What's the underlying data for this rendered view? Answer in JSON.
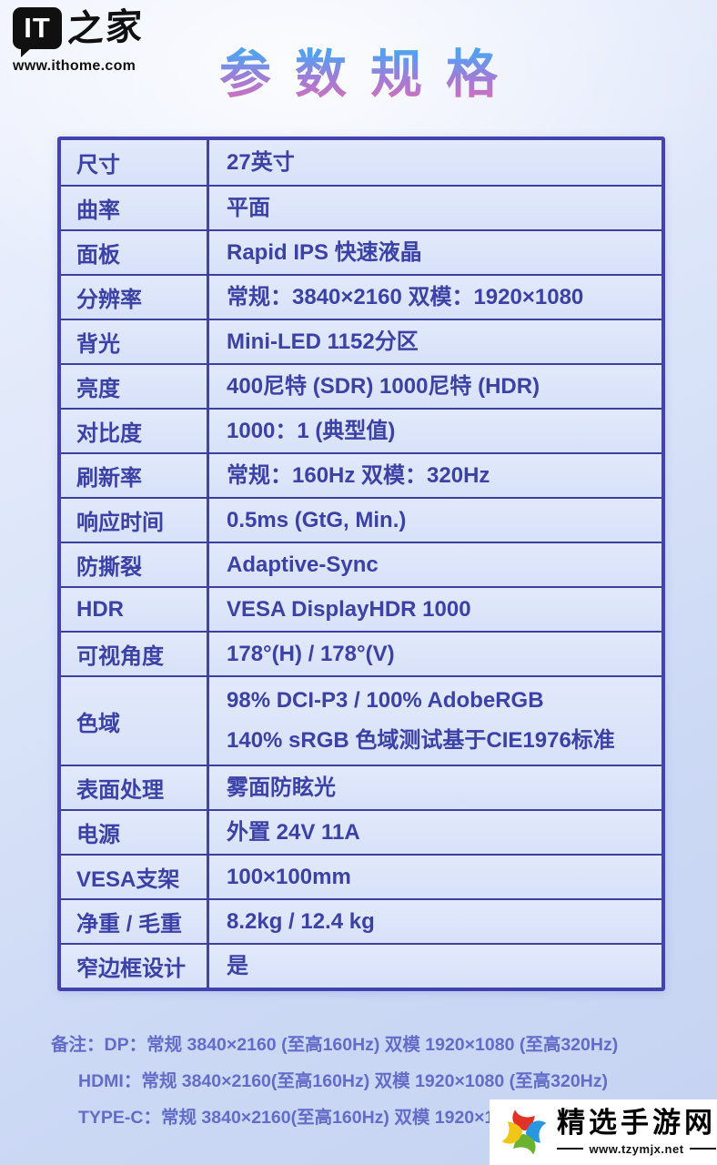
{
  "header": {
    "logo": {
      "icon_text": "IT",
      "brand_chars": "之家",
      "url": "www.ithome.com"
    },
    "title": "参数规格"
  },
  "colors": {
    "table_border": "#4442ae",
    "table_text": "#3c41a6",
    "title_gradient_top": "#2fb3ea",
    "title_gradient_bottom": "#e26ab5",
    "notes_text": "#636cc8",
    "background": "#ccd9f5"
  },
  "spec_table": {
    "rows": [
      {
        "label": "尺寸",
        "value": "27英寸"
      },
      {
        "label": "曲率",
        "value": "平面"
      },
      {
        "label": "面板",
        "value": "Rapid IPS 快速液晶"
      },
      {
        "label": "分辨率",
        "value": "常规：3840×2160  双模：1920×1080"
      },
      {
        "label": "背光",
        "value": "Mini-LED 1152分区"
      },
      {
        "label": "亮度",
        "value": "400尼特 (SDR)   1000尼特 (HDR)"
      },
      {
        "label": "对比度",
        "value": "1000：1 (典型值)"
      },
      {
        "label": "刷新率",
        "value": "常规：160Hz  双模：320Hz"
      },
      {
        "label": "响应时间",
        "value": "0.5ms (GtG, Min.)"
      },
      {
        "label": "防撕裂",
        "value": "Adaptive-Sync"
      },
      {
        "label": "HDR",
        "value": "VESA DisplayHDR 1000"
      },
      {
        "label": "可视角度",
        "value": "178°(H) / 178°(V)"
      },
      {
        "label": "色域",
        "value_lines": [
          "98% DCI-P3 / 100% AdobeRGB",
          "140% sRGB 色域测试基于CIE1976标准"
        ]
      },
      {
        "label": "表面处理",
        "value": "雾面防眩光"
      },
      {
        "label": "电源",
        "value": "外置 24V 11A"
      },
      {
        "label": "VESA支架",
        "value": "100×100mm"
      },
      {
        "label": "净重 / 毛重",
        "value": "8.2kg / 12.4 kg"
      },
      {
        "label": "窄边框设计",
        "value": "是"
      }
    ]
  },
  "notes": {
    "lines": [
      "备注：DP：常规 3840×2160 (至高160Hz)  双模 1920×1080 (至高320Hz)",
      "HDMI：常规 3840×2160(至高160Hz) 双模 1920×1080 (至高320Hz)",
      "TYPE-C：常规 3840×2160(至高160Hz) 双模 1920×1080 (至高320Hz)"
    ]
  },
  "watermark": {
    "name": "精选手游网",
    "url": "www.tzymjx.net",
    "logo_colors": {
      "top": "#e03226",
      "right": "#2b96e0",
      "bottom": "#6ab32f",
      "left": "#f2c618"
    }
  }
}
